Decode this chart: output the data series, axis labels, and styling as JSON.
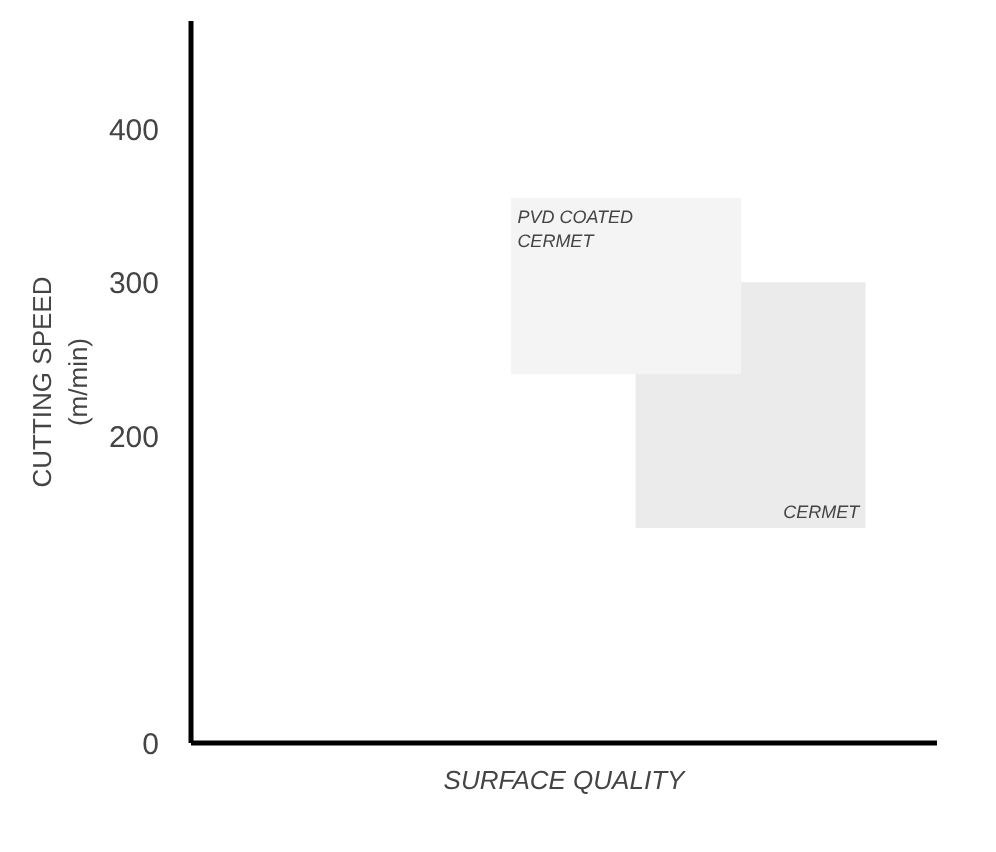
{
  "chart_data": {
    "type": "bar",
    "categories": [
      null,
      null,
      null,
      null,
      null,
      null
    ],
    "series": [
      {
        "name": "PVD COATED\nCERMET",
        "color": "#f4f4f4",
        "values": [
          null,
          null,
          null,
          115,
          null,
          null
        ],
        "base": [
          null,
          null,
          null,
          240,
          null,
          null
        ]
      },
      {
        "name": "CERMET",
        "color": "#ebebeb",
        "values": [
          null,
          null,
          null,
          null,
          160,
          null
        ],
        "base": [
          null,
          null,
          null,
          null,
          140,
          null
        ]
      }
    ],
    "ylabel": "CUTTING SPEED\n(m/min)",
    "xlabel": "SURFACE QUALITY",
    "ylim": [
      0,
      470
    ],
    "yticks": [
      0,
      200,
      300,
      400
    ],
    "grid": false,
    "tick_labels": "y"
  }
}
